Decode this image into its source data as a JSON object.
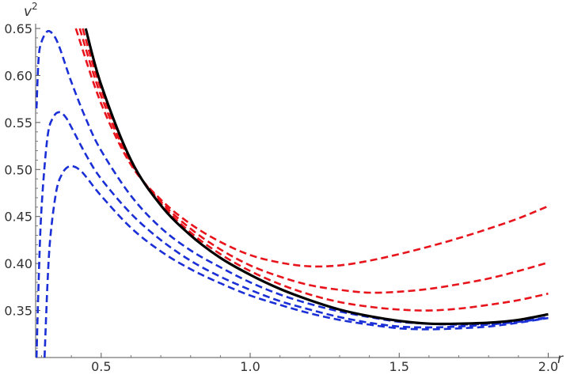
{
  "chart_data": {
    "type": "line",
    "title": "",
    "xlabel": "r",
    "ylabel": "v",
    "ylabel_superscript": "2",
    "xlim": [
      0.28,
      2.02
    ],
    "ylim": [
      0.3,
      0.65
    ],
    "x_ticks": [
      0.5,
      1.0,
      1.5,
      2.0
    ],
    "x_tick_labels": [
      "0.5",
      "1.0",
      "1.5",
      "2.0"
    ],
    "y_ticks": [
      0.35,
      0.4,
      0.45,
      0.5,
      0.55,
      0.6,
      0.65
    ],
    "y_tick_labels": [
      "0.35",
      "0.40",
      "0.45",
      "0.50",
      "0.55",
      "0.60",
      "0.65"
    ],
    "grid": false,
    "colors": {
      "black": "#000000",
      "red": "#e8141c",
      "blue": "#1a2fd6"
    },
    "series": [
      {
        "color": "black",
        "style": "solid",
        "x": [
          0.448,
          0.5,
          0.6,
          0.7,
          0.8,
          0.9,
          1.0,
          1.1,
          1.2,
          1.3,
          1.4,
          1.5,
          1.6,
          1.7,
          1.8,
          1.9,
          2.0
        ],
        "y": [
          0.65,
          0.59,
          0.51,
          0.462,
          0.43,
          0.406,
          0.388,
          0.373,
          0.361,
          0.351,
          0.344,
          0.339,
          0.336,
          0.336,
          0.337,
          0.34,
          0.346
        ]
      },
      {
        "color": "red",
        "style": "dashed",
        "x": [
          0.415,
          0.5,
          0.6,
          0.7,
          0.8,
          0.9,
          1.0,
          1.1,
          1.2,
          1.3,
          1.4,
          1.5,
          1.6,
          1.7,
          1.8,
          1.9,
          2.0
        ],
        "y": [
          0.65,
          0.57,
          0.505,
          0.468,
          0.442,
          0.423,
          0.409,
          0.401,
          0.397,
          0.398,
          0.403,
          0.41,
          0.418,
          0.427,
          0.437,
          0.448,
          0.461
        ]
      },
      {
        "color": "red",
        "style": "dashed",
        "x": [
          0.428,
          0.5,
          0.6,
          0.7,
          0.8,
          0.9,
          1.0,
          1.1,
          1.2,
          1.3,
          1.4,
          1.5,
          1.6,
          1.7,
          1.8,
          1.9,
          2.0
        ],
        "y": [
          0.65,
          0.578,
          0.507,
          0.466,
          0.437,
          0.415,
          0.398,
          0.386,
          0.377,
          0.372,
          0.369,
          0.37,
          0.373,
          0.378,
          0.384,
          0.392,
          0.401
        ]
      },
      {
        "color": "red",
        "style": "dashed",
        "x": [
          0.438,
          0.5,
          0.6,
          0.7,
          0.8,
          0.9,
          1.0,
          1.1,
          1.2,
          1.3,
          1.4,
          1.5,
          1.6,
          1.7,
          1.8,
          1.9,
          2.0
        ],
        "y": [
          0.65,
          0.585,
          0.509,
          0.464,
          0.433,
          0.41,
          0.392,
          0.378,
          0.367,
          0.359,
          0.354,
          0.351,
          0.35,
          0.352,
          0.356,
          0.361,
          0.368
        ]
      },
      {
        "color": "blue",
        "style": "dashed",
        "x": [
          0.283,
          0.29,
          0.3,
          0.32,
          0.34,
          0.36,
          0.4,
          0.45,
          0.5,
          0.6,
          0.7,
          0.8,
          0.9,
          1.0,
          1.1,
          1.2,
          1.3,
          1.4,
          1.5,
          1.6,
          1.7,
          1.8,
          1.9,
          2.0
        ],
        "y": [
          0.565,
          0.618,
          0.636,
          0.647,
          0.643,
          0.63,
          0.593,
          0.553,
          0.52,
          0.472,
          0.438,
          0.414,
          0.396,
          0.38,
          0.367,
          0.357,
          0.349,
          0.343,
          0.338,
          0.336,
          0.335,
          0.336,
          0.338,
          0.343
        ]
      },
      {
        "color": "blue",
        "style": "dashed",
        "x": [
          0.283,
          0.29,
          0.3,
          0.32,
          0.34,
          0.36,
          0.38,
          0.4,
          0.45,
          0.5,
          0.6,
          0.7,
          0.8,
          0.9,
          1.0,
          1.1,
          1.2,
          1.3,
          1.4,
          1.5,
          1.6,
          1.7,
          1.8,
          1.9,
          2.0
        ],
        "y": [
          0.3,
          0.38,
          0.46,
          0.535,
          0.556,
          0.561,
          0.556,
          0.545,
          0.515,
          0.49,
          0.453,
          0.425,
          0.403,
          0.386,
          0.372,
          0.36,
          0.351,
          0.343,
          0.337,
          0.333,
          0.332,
          0.333,
          0.335,
          0.338,
          0.342
        ]
      },
      {
        "color": "blue",
        "style": "dashed",
        "x": [
          0.31,
          0.32,
          0.33,
          0.35,
          0.37,
          0.39,
          0.41,
          0.43,
          0.45,
          0.5,
          0.6,
          0.7,
          0.8,
          0.9,
          1.0,
          1.1,
          1.2,
          1.3,
          1.4,
          1.5,
          1.6,
          1.7,
          1.8,
          1.9,
          2.0
        ],
        "y": [
          0.3,
          0.38,
          0.43,
          0.478,
          0.496,
          0.503,
          0.503,
          0.499,
          0.492,
          0.472,
          0.438,
          0.413,
          0.394,
          0.379,
          0.366,
          0.356,
          0.347,
          0.34,
          0.335,
          0.331,
          0.33,
          0.331,
          0.333,
          0.337,
          0.342
        ]
      }
    ]
  }
}
